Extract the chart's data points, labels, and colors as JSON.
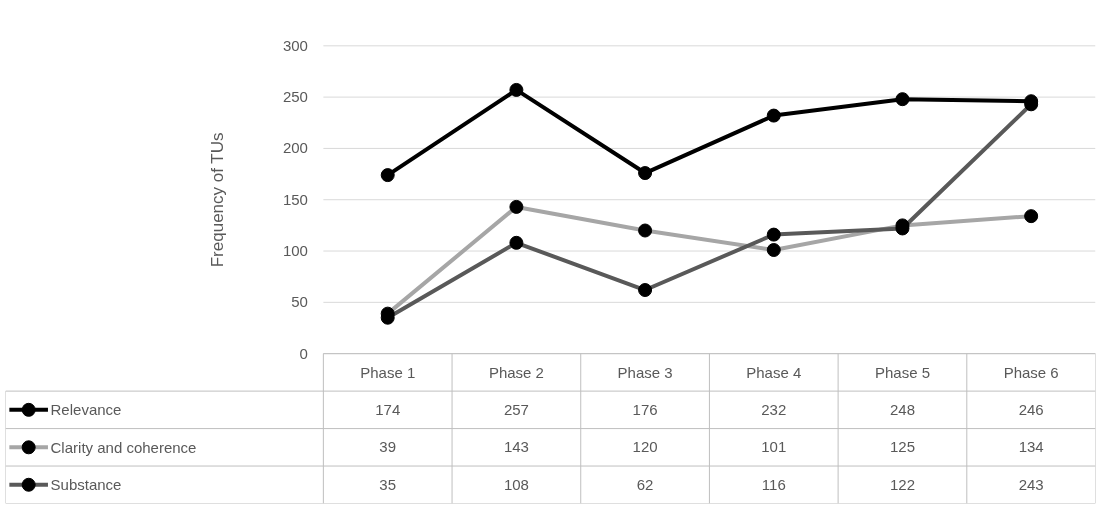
{
  "chart_data": {
    "type": "line",
    "ylabel": "Frequency of TUs",
    "categories": [
      "Phase 1",
      "Phase 2",
      "Phase 3",
      "Phase 4",
      "Phase 5",
      "Phase 6"
    ],
    "series": [
      {
        "name": "Relevance",
        "color": "#000000",
        "values": [
          174,
          257,
          176,
          232,
          248,
          246
        ]
      },
      {
        "name": "Clarity and coherence",
        "color": "#a6a6a6",
        "values": [
          39,
          143,
          120,
          101,
          125,
          134
        ]
      },
      {
        "name": "Substance",
        "color": "#595959",
        "values": [
          35,
          108,
          62,
          116,
          122,
          243
        ]
      }
    ],
    "ylim": [
      0,
      300
    ],
    "yticks": [
      0,
      50,
      100,
      150,
      200,
      250,
      300
    ],
    "grid": "y",
    "marker": "circle",
    "line_style": "solid",
    "legend": "bottom",
    "data_labels": true
  }
}
